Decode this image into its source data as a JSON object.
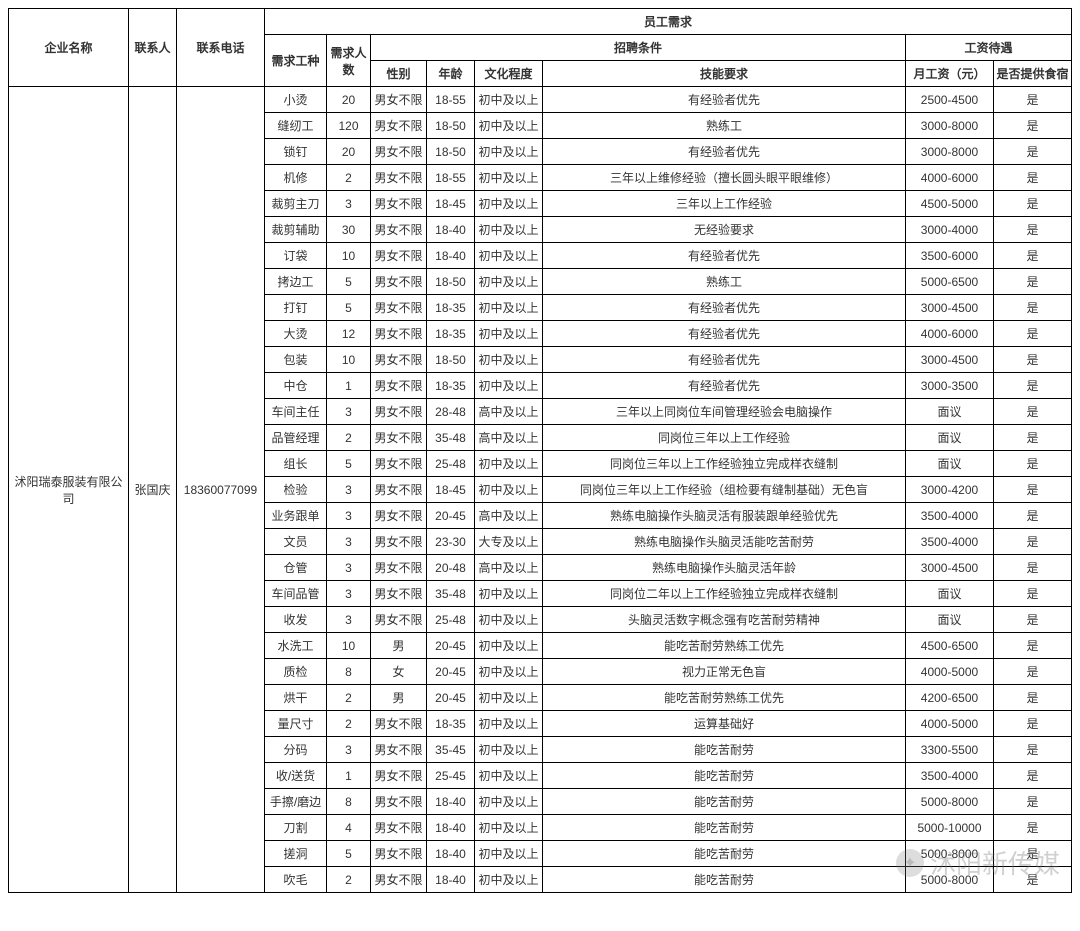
{
  "headers": {
    "company": "企业名称",
    "contact": "联系人",
    "phone": "联系电话",
    "demand": "员工需求",
    "job": "需求工种",
    "count": "需求人数",
    "conditions": "招聘条件",
    "salary_group": "工资待遇",
    "gender": "性别",
    "age": "年龄",
    "edu": "文化程度",
    "skill": "技能要求",
    "monthly": "月工资（元）",
    "board": "是否提供食宿"
  },
  "company": {
    "name": "沭阳瑞泰服装有限公司",
    "contact": "张国庆",
    "phone": "18360077099"
  },
  "rows": [
    {
      "job": "小烫",
      "count": "20",
      "gender": "男女不限",
      "age": "18-55",
      "edu": "初中及以上",
      "skill": "有经验者优先",
      "salary": "2500-4500",
      "board": "是"
    },
    {
      "job": "缝纫工",
      "count": "120",
      "gender": "男女不限",
      "age": "18-50",
      "edu": "初中及以上",
      "skill": "熟练工",
      "salary": "3000-8000",
      "board": "是"
    },
    {
      "job": "锁钉",
      "count": "20",
      "gender": "男女不限",
      "age": "18-50",
      "edu": "初中及以上",
      "skill": "有经验者优先",
      "salary": "3000-8000",
      "board": "是"
    },
    {
      "job": "机修",
      "count": "2",
      "gender": "男女不限",
      "age": "18-55",
      "edu": "初中及以上",
      "skill": "三年以上维修经验（擅长圆头眼平眼维修）",
      "salary": "4000-6000",
      "board": "是"
    },
    {
      "job": "裁剪主刀",
      "count": "3",
      "gender": "男女不限",
      "age": "18-45",
      "edu": "初中及以上",
      "skill": "三年以上工作经验",
      "salary": "4500-5000",
      "board": "是"
    },
    {
      "job": "裁剪辅助",
      "count": "30",
      "gender": "男女不限",
      "age": "18-40",
      "edu": "初中及以上",
      "skill": "无经验要求",
      "salary": "3000-4000",
      "board": "是"
    },
    {
      "job": "订袋",
      "count": "10",
      "gender": "男女不限",
      "age": "18-40",
      "edu": "初中及以上",
      "skill": "有经验者优先",
      "salary": "3500-6000",
      "board": "是"
    },
    {
      "job": "拷边工",
      "count": "5",
      "gender": "男女不限",
      "age": "18-50",
      "edu": "初中及以上",
      "skill": "熟练工",
      "salary": "5000-6500",
      "board": "是"
    },
    {
      "job": "打钉",
      "count": "5",
      "gender": "男女不限",
      "age": "18-35",
      "edu": "初中及以上",
      "skill": "有经验者优先",
      "salary": "3000-4500",
      "board": "是"
    },
    {
      "job": "大烫",
      "count": "12",
      "gender": "男女不限",
      "age": "18-35",
      "edu": "初中及以上",
      "skill": "有经验者优先",
      "salary": "4000-6000",
      "board": "是"
    },
    {
      "job": "包装",
      "count": "10",
      "gender": "男女不限",
      "age": "18-50",
      "edu": "初中及以上",
      "skill": "有经验者优先",
      "salary": "3000-4500",
      "board": "是"
    },
    {
      "job": "中仓",
      "count": "1",
      "gender": "男女不限",
      "age": "18-35",
      "edu": "初中及以上",
      "skill": "有经验者优先",
      "salary": "3000-3500",
      "board": "是"
    },
    {
      "job": "车间主任",
      "count": "3",
      "gender": "男女不限",
      "age": "28-48",
      "edu": "高中及以上",
      "skill": "三年以上同岗位车间管理经验会电脑操作",
      "salary": "面议",
      "board": "是"
    },
    {
      "job": "品管经理",
      "count": "2",
      "gender": "男女不限",
      "age": "35-48",
      "edu": "高中及以上",
      "skill": "同岗位三年以上工作经验",
      "salary": "面议",
      "board": "是"
    },
    {
      "job": "组长",
      "count": "5",
      "gender": "男女不限",
      "age": "25-48",
      "edu": "初中及以上",
      "skill": "同岗位三年以上工作经验独立完成样衣缝制",
      "salary": "面议",
      "board": "是"
    },
    {
      "job": "检验",
      "count": "3",
      "gender": "男女不限",
      "age": "18-45",
      "edu": "初中及以上",
      "skill": "同岗位三年以上工作经验（组检要有缝制基础）无色盲",
      "salary": "3000-4200",
      "board": "是"
    },
    {
      "job": "业务跟单",
      "count": "3",
      "gender": "男女不限",
      "age": "20-45",
      "edu": "高中及以上",
      "skill": "熟练电脑操作头脑灵活有服装跟单经验优先",
      "salary": "3500-4000",
      "board": "是"
    },
    {
      "job": "文员",
      "count": "3",
      "gender": "男女不限",
      "age": "23-30",
      "edu": "大专及以上",
      "skill": "熟练电脑操作头脑灵活能吃苦耐劳",
      "salary": "3500-4000",
      "board": "是"
    },
    {
      "job": "仓管",
      "count": "3",
      "gender": "男女不限",
      "age": "20-48",
      "edu": "高中及以上",
      "skill": "熟练电脑操作头脑灵活年龄",
      "salary": "3000-4500",
      "board": "是"
    },
    {
      "job": "车间品管",
      "count": "3",
      "gender": "男女不限",
      "age": "35-48",
      "edu": "初中及以上",
      "skill": "同岗位二年以上工作经验独立完成样衣缝制",
      "salary": "面议",
      "board": "是"
    },
    {
      "job": "收发",
      "count": "3",
      "gender": "男女不限",
      "age": "25-48",
      "edu": "初中及以上",
      "skill": "头脑灵活数字概念强有吃苦耐劳精神",
      "salary": "面议",
      "board": "是"
    },
    {
      "job": "水洗工",
      "count": "10",
      "gender": "男",
      "age": "20-45",
      "edu": "初中及以上",
      "skill": "能吃苦耐劳熟练工优先",
      "salary": "4500-6500",
      "board": "是"
    },
    {
      "job": "质检",
      "count": "8",
      "gender": "女",
      "age": "20-45",
      "edu": "初中及以上",
      "skill": "视力正常无色盲",
      "salary": "4000-5000",
      "board": "是"
    },
    {
      "job": "烘干",
      "count": "2",
      "gender": "男",
      "age": "20-45",
      "edu": "初中及以上",
      "skill": "能吃苦耐劳熟练工优先",
      "salary": "4200-6500",
      "board": "是"
    },
    {
      "job": "量尺寸",
      "count": "2",
      "gender": "男女不限",
      "age": "18-35",
      "edu": "初中及以上",
      "skill": "运算基础好",
      "salary": "4000-5000",
      "board": "是"
    },
    {
      "job": "分码",
      "count": "3",
      "gender": "男女不限",
      "age": "35-45",
      "edu": "初中及以上",
      "skill": "能吃苦耐劳",
      "salary": "3300-5500",
      "board": "是"
    },
    {
      "job": "收/送货",
      "count": "1",
      "gender": "男女不限",
      "age": "25-45",
      "edu": "初中及以上",
      "skill": "能吃苦耐劳",
      "salary": "3500-4000",
      "board": "是"
    },
    {
      "job": "手擦/磨边",
      "count": "8",
      "gender": "男女不限",
      "age": "18-40",
      "edu": "初中及以上",
      "skill": "能吃苦耐劳",
      "salary": "5000-8000",
      "board": "是"
    },
    {
      "job": "刀割",
      "count": "4",
      "gender": "男女不限",
      "age": "18-40",
      "edu": "初中及以上",
      "skill": "能吃苦耐劳",
      "salary": "5000-10000",
      "board": "是"
    },
    {
      "job": "搓洞",
      "count": "5",
      "gender": "男女不限",
      "age": "18-40",
      "edu": "初中及以上",
      "skill": "能吃苦耐劳",
      "salary": "5000-8000",
      "board": "是"
    },
    {
      "job": "吹毛",
      "count": "2",
      "gender": "男女不限",
      "age": "18-40",
      "edu": "初中及以上",
      "skill": "能吃苦耐劳",
      "salary": "5000-8000",
      "board": "是"
    }
  ],
  "watermark": "沭阳新传媒",
  "colwidths": {
    "company": "120px",
    "contact": "48px",
    "phone": "88px",
    "job": "62px",
    "count": "44px",
    "gender": "56px",
    "age": "48px",
    "edu": "68px",
    "skill": "auto",
    "salary": "88px",
    "board": "78px"
  }
}
